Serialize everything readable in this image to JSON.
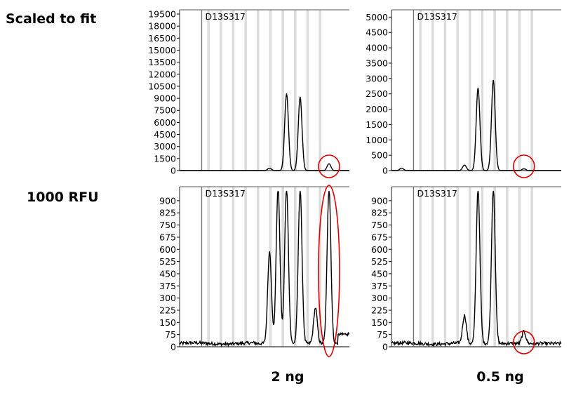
{
  "row_labels": [
    "Scaled to fit",
    "1000 RFU"
  ],
  "col_labels": [
    "2 ng",
    "0.5 ng"
  ],
  "highlight_color": "#e00000",
  "chart_data": [
    {
      "type": "line",
      "marker": "D13S317",
      "row": "Scaled to fit",
      "column": "2 ng",
      "ylim": [
        0,
        19500
      ],
      "yticks": [
        0,
        1500,
        3000,
        4500,
        6000,
        7500,
        9000,
        10500,
        12000,
        13500,
        15000,
        16500,
        18000,
        19500
      ],
      "peaks": [
        {
          "x": 0.53,
          "y": 300
        },
        {
          "x": 0.63,
          "y": 9600
        },
        {
          "x": 0.71,
          "y": 9200
        },
        {
          "x": 0.88,
          "y": 850
        }
      ],
      "highlight": {
        "x": 0.88
      }
    },
    {
      "type": "line",
      "marker": "D13S317",
      "row": "Scaled to fit",
      "column": "0.5 ng",
      "ylim": [
        0,
        5100
      ],
      "yticks": [
        0,
        500,
        1000,
        1500,
        2000,
        2500,
        3000,
        3500,
        4000,
        4500,
        5000
      ],
      "peaks": [
        {
          "x": 0.06,
          "y": 80
        },
        {
          "x": 0.43,
          "y": 180
        },
        {
          "x": 0.51,
          "y": 2700
        },
        {
          "x": 0.6,
          "y": 2950
        },
        {
          "x": 0.78,
          "y": 60
        }
      ],
      "highlight": {
        "x": 0.78
      }
    },
    {
      "type": "line",
      "marker": "D13S317",
      "row": "1000 RFU",
      "column": "2 ng",
      "ylim": [
        0,
        960
      ],
      "yticks": [
        0,
        75,
        150,
        225,
        300,
        375,
        450,
        525,
        600,
        675,
        750,
        825,
        900
      ],
      "peaks": [
        {
          "x": 0.53,
          "y": 570
        },
        {
          "x": 0.58,
          "y": 960
        },
        {
          "x": 0.63,
          "y": 960
        },
        {
          "x": 0.71,
          "y": 960
        },
        {
          "x": 0.8,
          "y": 220
        },
        {
          "x": 0.88,
          "y": 960
        }
      ],
      "highlight": {
        "x": 0.88
      }
    },
    {
      "type": "line",
      "marker": "D13S317",
      "row": "1000 RFU",
      "column": "0.5 ng",
      "ylim": [
        0,
        960
      ],
      "yticks": [
        0,
        75,
        150,
        225,
        300,
        375,
        450,
        525,
        600,
        675,
        750,
        825,
        900
      ],
      "peaks": [
        {
          "x": 0.43,
          "y": 170
        },
        {
          "x": 0.51,
          "y": 960
        },
        {
          "x": 0.6,
          "y": 960
        },
        {
          "x": 0.78,
          "y": 75
        }
      ],
      "highlight": {
        "x": 0.78
      }
    }
  ]
}
